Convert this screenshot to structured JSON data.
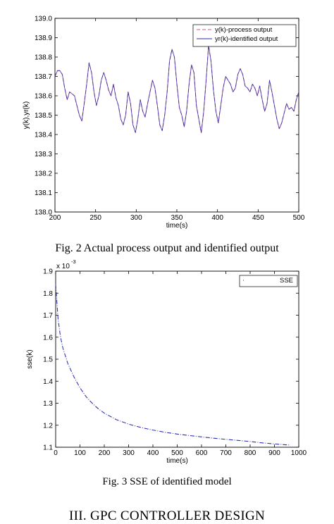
{
  "figure2": {
    "caption": "Fig. 2  Actual process output and identified output",
    "chart_data": {
      "type": "line",
      "xlabel": "time(s)",
      "ylabel": "y(k),yr(k)",
      "xlim": [
        200,
        500
      ],
      "ylim": [
        138,
        139
      ],
      "xticks": [
        200,
        250,
        300,
        350,
        400,
        450,
        500
      ],
      "yticks": [
        138,
        138.1,
        138.2,
        138.3,
        138.4,
        138.5,
        138.6,
        138.7,
        138.8,
        138.9,
        139
      ],
      "legend_position": "top-right",
      "grid": false,
      "x": [
        200,
        203,
        206,
        209,
        212,
        215,
        218,
        221,
        224,
        227,
        230,
        233,
        236,
        239,
        242,
        245,
        248,
        251,
        254,
        257,
        260,
        263,
        266,
        269,
        272,
        275,
        278,
        281,
        284,
        287,
        290,
        293,
        296,
        299,
        302,
        305,
        308,
        311,
        314,
        317,
        320,
        323,
        326,
        329,
        332,
        335,
        338,
        341,
        344,
        347,
        350,
        353,
        356,
        359,
        362,
        365,
        368,
        371,
        374,
        377,
        380,
        383,
        386,
        389,
        392,
        395,
        398,
        401,
        404,
        407,
        410,
        413,
        416,
        419,
        422,
        425,
        428,
        431,
        434,
        437,
        440,
        443,
        446,
        449,
        452,
        455,
        458,
        461,
        464,
        467,
        470,
        473,
        476,
        479,
        482,
        485,
        488,
        491,
        494,
        497,
        500
      ],
      "series": [
        {
          "name": "y(k)-process output",
          "color": "#e8506e",
          "style": "dashed",
          "values": [
            138.7,
            138.73,
            138.73,
            138.71,
            138.64,
            138.58,
            138.62,
            138.61,
            138.6,
            138.55,
            138.5,
            138.47,
            138.56,
            138.66,
            138.77,
            138.72,
            138.62,
            138.55,
            138.6,
            138.68,
            138.72,
            138.68,
            138.63,
            138.6,
            138.66,
            138.59,
            138.55,
            138.48,
            138.45,
            138.5,
            138.62,
            138.56,
            138.45,
            138.41,
            138.48,
            138.58,
            138.52,
            138.49,
            138.56,
            138.62,
            138.68,
            138.64,
            138.55,
            138.45,
            138.42,
            138.5,
            138.62,
            138.78,
            138.84,
            138.8,
            138.66,
            138.54,
            138.5,
            138.44,
            138.52,
            138.66,
            138.76,
            138.72,
            138.55,
            138.48,
            138.41,
            138.52,
            138.68,
            138.86,
            138.78,
            138.63,
            138.52,
            138.46,
            138.55,
            138.64,
            138.7,
            138.68,
            138.66,
            138.62,
            138.64,
            138.71,
            138.74,
            138.71,
            138.65,
            138.64,
            138.62,
            138.66,
            138.64,
            138.6,
            138.65,
            138.58,
            138.52,
            138.56,
            138.68,
            138.62,
            138.55,
            138.48,
            138.43,
            138.46,
            138.51,
            138.56,
            138.53,
            138.54,
            138.52,
            138.58,
            138.62
          ]
        },
        {
          "name": "yr(k)-identified output",
          "color": "#2b2bb0",
          "style": "solid",
          "values": [
            138.7,
            138.73,
            138.73,
            138.71,
            138.64,
            138.58,
            138.62,
            138.61,
            138.6,
            138.55,
            138.5,
            138.47,
            138.56,
            138.66,
            138.77,
            138.72,
            138.62,
            138.55,
            138.6,
            138.68,
            138.72,
            138.68,
            138.63,
            138.6,
            138.66,
            138.59,
            138.55,
            138.48,
            138.45,
            138.5,
            138.62,
            138.56,
            138.45,
            138.41,
            138.48,
            138.58,
            138.52,
            138.49,
            138.56,
            138.62,
            138.68,
            138.64,
            138.55,
            138.45,
            138.42,
            138.5,
            138.62,
            138.78,
            138.84,
            138.8,
            138.66,
            138.54,
            138.5,
            138.44,
            138.52,
            138.66,
            138.76,
            138.72,
            138.55,
            138.48,
            138.41,
            138.52,
            138.68,
            138.86,
            138.78,
            138.63,
            138.52,
            138.46,
            138.55,
            138.64,
            138.7,
            138.68,
            138.66,
            138.62,
            138.64,
            138.71,
            138.74,
            138.71,
            138.65,
            138.64,
            138.62,
            138.66,
            138.64,
            138.6,
            138.65,
            138.58,
            138.52,
            138.56,
            138.68,
            138.62,
            138.55,
            138.48,
            138.43,
            138.46,
            138.51,
            138.56,
            138.53,
            138.54,
            138.52,
            138.58,
            138.62
          ]
        }
      ]
    }
  },
  "figure3": {
    "caption": "Fig. 3  SSE of identified model",
    "scale_label": "x 10",
    "scale_exponent": "-3",
    "chart_data": {
      "type": "line",
      "xlabel": "time(s)",
      "ylabel": "sse(k)",
      "xlim": [
        0,
        1000
      ],
      "ylim": [
        1.1,
        1.9
      ],
      "xticks": [
        0,
        100,
        200,
        300,
        400,
        500,
        600,
        700,
        800,
        900,
        1000
      ],
      "yticks": [
        1.1,
        1.2,
        1.3,
        1.4,
        1.5,
        1.6,
        1.7,
        1.8,
        1.9
      ],
      "legend_position": "top-right",
      "grid": false,
      "x": [
        0,
        5,
        10,
        20,
        30,
        50,
        75,
        100,
        125,
        150,
        175,
        200,
        250,
        300,
        350,
        400,
        450,
        500,
        550,
        600,
        650,
        700,
        750,
        800,
        850,
        900,
        960
      ],
      "series": [
        {
          "name": "SSE",
          "color": "#2b2bb0",
          "style": "dashdot",
          "values": [
            1.84,
            1.76,
            1.68,
            1.6,
            1.55,
            1.48,
            1.42,
            1.37,
            1.33,
            1.3,
            1.275,
            1.255,
            1.225,
            1.205,
            1.19,
            1.178,
            1.168,
            1.16,
            1.153,
            1.147,
            1.141,
            1.136,
            1.131,
            1.126,
            1.12,
            1.115,
            1.11
          ]
        }
      ]
    }
  },
  "section_heading": "III.   GPC CONTROLLER DESIGN"
}
